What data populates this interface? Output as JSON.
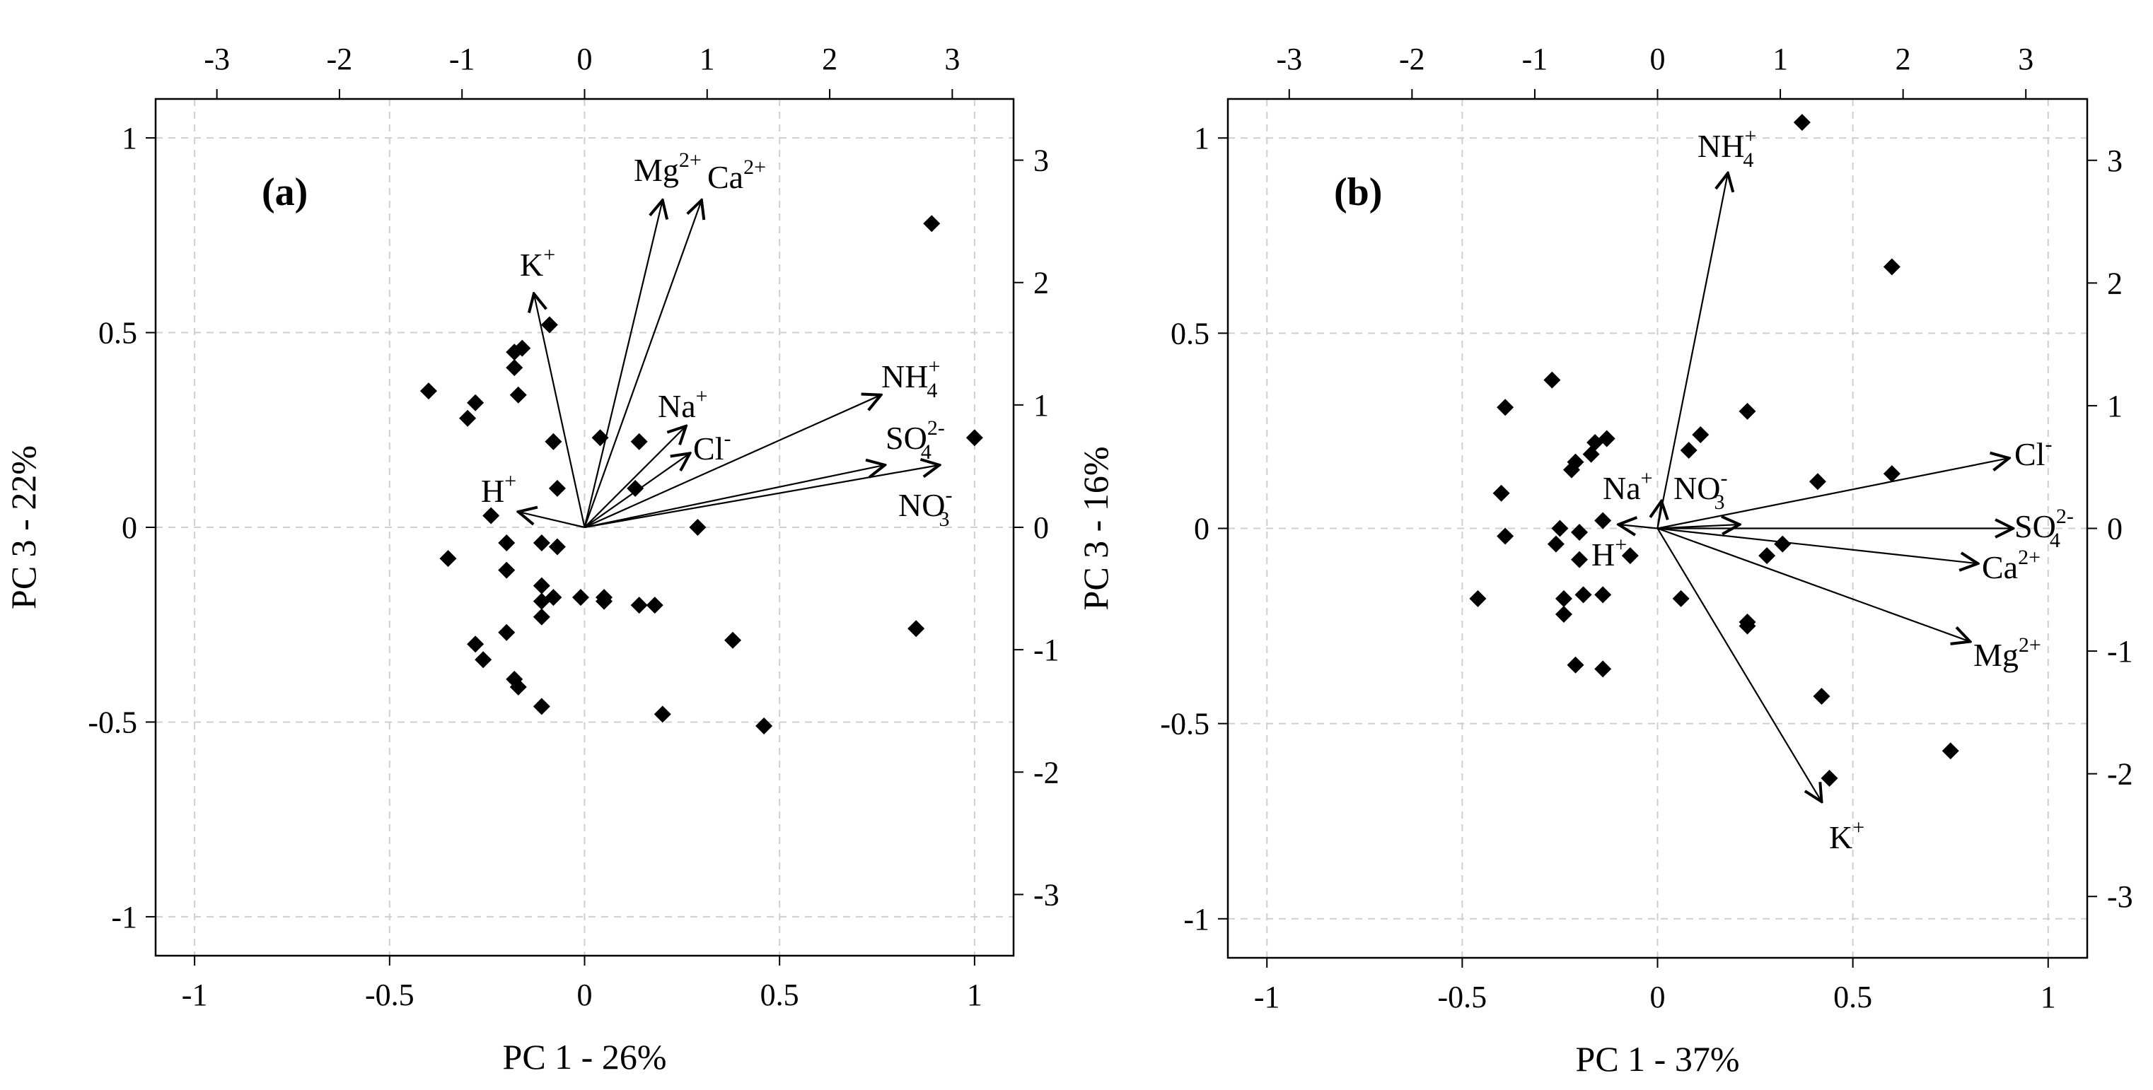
{
  "chart_data": [
    {
      "type": "scatter",
      "panel": "(a)",
      "xlabel": "PC 1 - 26%",
      "ylabel": "PC 3 - 22%",
      "xlim": [
        -1.1,
        1.1
      ],
      "ylim": [
        -1.1,
        1.1
      ],
      "xticks": [
        "-1",
        "-0.5",
        "0",
        "0.5",
        "1"
      ],
      "yticks": [
        "1",
        "0.5",
        "0",
        "-0.5",
        "-1"
      ],
      "top_xticks": [
        "-3",
        "-2",
        "-1",
        "0",
        "1",
        "2",
        "3"
      ],
      "right_yticks": [
        "3",
        "2",
        "1",
        "0",
        "-1",
        "-2",
        "-3"
      ],
      "grid": true,
      "loadings": [
        {
          "label": "Mg",
          "sup": "2+",
          "x": 0.2,
          "y": 0.84
        },
        {
          "label": "Ca",
          "sup": "2+",
          "x": 0.3,
          "y": 0.84
        },
        {
          "label": "K",
          "sup": "+",
          "x": -0.13,
          "y": 0.6
        },
        {
          "label": "Na",
          "sup": "+",
          "x": 0.26,
          "y": 0.26
        },
        {
          "label": "Cl",
          "sup": "-",
          "x": 0.27,
          "y": 0.19
        },
        {
          "label": "NH",
          "sub": "4",
          "sup": "+",
          "x": 0.76,
          "y": 0.34
        },
        {
          "label": "SO",
          "sub": "4",
          "sup": "2-",
          "x": 0.77,
          "y": 0.16
        },
        {
          "label": "NO",
          "sub": "3",
          "sup": "-",
          "x": 0.91,
          "y": 0.16
        },
        {
          "label": "H",
          "sup": "+",
          "x": -0.17,
          "y": 0.04
        }
      ],
      "scores": [
        [
          -0.4,
          0.35
        ],
        [
          -0.3,
          0.28
        ],
        [
          -0.28,
          0.32
        ],
        [
          -0.18,
          0.45
        ],
        [
          -0.16,
          0.46
        ],
        [
          -0.18,
          0.41
        ],
        [
          -0.17,
          0.34
        ],
        [
          -0.09,
          0.52
        ],
        [
          -0.08,
          0.22
        ],
        [
          0.04,
          0.23
        ],
        [
          0.14,
          0.22
        ],
        [
          -0.07,
          0.1
        ],
        [
          0.13,
          0.1
        ],
        [
          -0.24,
          0.03
        ],
        [
          0.29,
          0.0
        ],
        [
          0.89,
          0.78
        ],
        [
          1.0,
          0.23
        ],
        [
          -0.35,
          -0.08
        ],
        [
          -0.2,
          -0.04
        ],
        [
          -0.11,
          -0.04
        ],
        [
          -0.07,
          -0.05
        ],
        [
          -0.2,
          -0.11
        ],
        [
          -0.11,
          -0.15
        ],
        [
          -0.08,
          -0.18
        ],
        [
          -0.11,
          -0.19
        ],
        [
          -0.01,
          -0.18
        ],
        [
          0.05,
          -0.18
        ],
        [
          0.05,
          -0.19
        ],
        [
          0.14,
          -0.2
        ],
        [
          0.18,
          -0.2
        ],
        [
          -0.11,
          -0.23
        ],
        [
          -0.2,
          -0.27
        ],
        [
          -0.28,
          -0.3
        ],
        [
          -0.26,
          -0.34
        ],
        [
          -0.18,
          -0.39
        ],
        [
          -0.17,
          -0.41
        ],
        [
          -0.11,
          -0.46
        ],
        [
          0.2,
          -0.48
        ],
        [
          0.38,
          -0.29
        ],
        [
          0.46,
          -0.51
        ],
        [
          0.85,
          -0.26
        ]
      ]
    },
    {
      "type": "scatter",
      "panel": "(b)",
      "xlabel": "PC 1 - 37%",
      "ylabel": "PC 3 - 16%",
      "xlim": [
        -1.1,
        1.1
      ],
      "ylim": [
        -1.1,
        1.1
      ],
      "xticks": [
        "-1",
        "-0.5",
        "0",
        "0.5",
        "1"
      ],
      "yticks": [
        "1",
        "0.5",
        "0",
        "-0.5",
        "-1"
      ],
      "top_xticks": [
        "-3",
        "-2",
        "-1",
        "0",
        "1",
        "2",
        "3"
      ],
      "right_yticks": [
        "3",
        "2",
        "1",
        "0",
        "-1",
        "-2",
        "-3"
      ],
      "grid": true,
      "loadings": [
        {
          "label": "NH",
          "sub": "4",
          "sup": "+",
          "x": 0.18,
          "y": 0.91
        },
        {
          "label": "Cl",
          "sup": "-",
          "x": 0.9,
          "y": 0.18
        },
        {
          "label": "SO",
          "sub": "4",
          "sup": "2-",
          "x": 0.91,
          "y": 0.0
        },
        {
          "label": "Ca",
          "sup": "2+",
          "x": 0.82,
          "y": -0.09
        },
        {
          "label": "Mg",
          "sup": "2+",
          "x": 0.8,
          "y": -0.29
        },
        {
          "label": "K",
          "sup": "+",
          "x": 0.42,
          "y": -0.7
        },
        {
          "label": "Na",
          "sup": "+",
          "x": 0.01,
          "y": 0.07
        },
        {
          "label": "NO",
          "sub": "3",
          "sup": "-",
          "x": 0.21,
          "y": 0.01
        },
        {
          "label": "H",
          "sup": "+",
          "x": -0.1,
          "y": 0.01
        }
      ],
      "scores": [
        [
          0.37,
          1.04
        ],
        [
          0.6,
          0.67
        ],
        [
          -0.27,
          0.38
        ],
        [
          -0.39,
          0.31
        ],
        [
          0.23,
          0.3
        ],
        [
          -0.13,
          0.23
        ],
        [
          -0.16,
          0.22
        ],
        [
          0.11,
          0.24
        ],
        [
          -0.17,
          0.19
        ],
        [
          -0.21,
          0.17
        ],
        [
          -0.22,
          0.15
        ],
        [
          0.08,
          0.2
        ],
        [
          0.6,
          0.14
        ],
        [
          0.41,
          0.12
        ],
        [
          -0.4,
          0.09
        ],
        [
          -0.14,
          0.02
        ],
        [
          -0.25,
          0.0
        ],
        [
          -0.2,
          -0.01
        ],
        [
          -0.39,
          -0.02
        ],
        [
          -0.26,
          -0.04
        ],
        [
          0.32,
          -0.04
        ],
        [
          -0.07,
          -0.07
        ],
        [
          0.28,
          -0.07
        ],
        [
          -0.2,
          -0.08
        ],
        [
          -0.14,
          -0.17
        ],
        [
          -0.19,
          -0.17
        ],
        [
          -0.24,
          -0.18
        ],
        [
          -0.46,
          -0.18
        ],
        [
          0.06,
          -0.18
        ],
        [
          -0.24,
          -0.22
        ],
        [
          0.23,
          -0.24
        ],
        [
          0.23,
          -0.25
        ],
        [
          -0.21,
          -0.35
        ],
        [
          -0.14,
          -0.36
        ],
        [
          0.42,
          -0.43
        ],
        [
          0.44,
          -0.64
        ],
        [
          0.75,
          -0.57
        ]
      ]
    }
  ]
}
